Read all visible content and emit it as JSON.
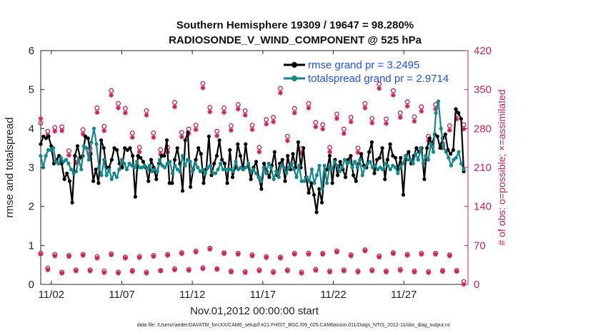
{
  "chart_data": {
    "type": "line",
    "title": "Southern Hemisphere 19309 / 19647 = 98.280%",
    "subtitle": "RADIOSONDE_V_WIND_COMPONENT @ 525 hPa",
    "xlabel": "Nov.01,2012 00:00:00 start",
    "ylabel": "rmse and totalspread",
    "y2label": "# of obs: o=possible; ×=assimilated",
    "xlim": [
      0,
      30.3
    ],
    "ylim": [
      0,
      6
    ],
    "y2lim": [
      0,
      420
    ],
    "xticks": [
      0.75,
      5.75,
      10.75,
      15.75,
      20.75,
      25.75
    ],
    "xticklabels": [
      "11/02",
      "11/07",
      "11/12",
      "11/17",
      "11/22",
      "11/27"
    ],
    "yticks": [
      0,
      1,
      2,
      3,
      4,
      5,
      6
    ],
    "yticklabels": [
      "0",
      "1",
      "2",
      "3",
      "4",
      "5",
      "6"
    ],
    "y2ticks": [
      0,
      70,
      140,
      210,
      280,
      350,
      420
    ],
    "y2ticklabels": [
      "0",
      "70",
      "140",
      "210",
      "280",
      "350",
      "420"
    ],
    "footnote": "data file: /Users/raeder/DAI/ATM_forcXX/CAM6_setup/f.e21.FHIST_BGC.f09_025.CAM6assim.011/Diags_NTrS_2012-11/obs_diag_output.nc",
    "series": [
      {
        "name": "rmse grand pr = 3.2495",
        "color": "#000000",
        "values": [
          3.6,
          3.8,
          3.75,
          3.8,
          3.55,
          3.1,
          3.2,
          3.3,
          3.1,
          2.7,
          2.85,
          2.65,
          2.1,
          3.3,
          3.55,
          3.25,
          3.3,
          3.8,
          3.75,
          3.35,
          2.65,
          2.95,
          2.6,
          3.7,
          3.5,
          3.0,
          3.0,
          3.2,
          3.5,
          3.45,
          3.1,
          3.0,
          3.5,
          3.45,
          3.5,
          3.3,
          2.25,
          3.3,
          3.25,
          3.15,
          3.0,
          2.65,
          3.2,
          3.0,
          2.7,
          3.1,
          3.3,
          3.3,
          3.7,
          2.6,
          2.6,
          3.2,
          3.5,
          3.1,
          2.4,
          3.7,
          3.9,
          2.5,
          2.95,
          3.2,
          3.5,
          3.35,
          2.6,
          2.95,
          3.8,
          2.8,
          3.1,
          3.3,
          3.7,
          3.2,
          3.1,
          2.6,
          3.45,
          2.75,
          3.0,
          3.6,
          3.3,
          2.95,
          3.6,
          3.05,
          2.7,
          3.0,
          3.15,
          2.75,
          2.45,
          3.1,
          2.9,
          2.75,
          3.05,
          3.4,
          2.8,
          3.1,
          3.2,
          2.65,
          3.3,
          2.95,
          3.35,
          3.0,
          3.65,
          3.0,
          3.5,
          2.75,
          2.35,
          2.6,
          2.3,
          1.85,
          2.45,
          2.1,
          2.85,
          2.95,
          3.3,
          2.6,
          3.2,
          2.8,
          3.15,
          2.95,
          2.75,
          3.2,
          3.3,
          2.8,
          2.65,
          3.1,
          3.35,
          3.05,
          3.0,
          3.4,
          3.65,
          2.85,
          3.2,
          3.25,
          3.5,
          2.7,
          3.2,
          3.6,
          3.3,
          3.25,
          2.95,
          3.25,
          2.3,
          3.3,
          3.4,
          3.1,
          3.3,
          3.5,
          3.4,
          3.5,
          2.7,
          3.5,
          3.75,
          3.6,
          3.85,
          3.8,
          3.5,
          3.75,
          3.85,
          3.45,
          3.35,
          3.45,
          4.5,
          4.4,
          4.25,
          2.9
        ]
      },
      {
        "name": "totalspread grand pr = 2.9714",
        "color": "#14878a",
        "values": [
          3.3,
          3.0,
          3.3,
          3.45,
          3.45,
          3.5,
          3.15,
          3.1,
          3.25,
          3.15,
          3.2,
          3.1,
          2.95,
          2.85,
          2.9,
          3.2,
          2.95,
          3.55,
          3.5,
          3.2,
          3.65,
          4.0,
          3.6,
          3.0,
          2.8,
          3.2,
          2.8,
          2.95,
          2.7,
          2.85,
          2.75,
          2.95,
          3.2,
          3.1,
          2.95,
          3.1,
          3.05,
          3.0,
          3.15,
          3.0,
          3.0,
          3.05,
          2.95,
          3.05,
          2.9,
          2.95,
          2.9,
          3.2,
          3.05,
          3.0,
          3.1,
          3.15,
          2.85,
          3.05,
          2.95,
          2.9,
          3.3,
          3.05,
          3.2,
          3.15,
          2.9,
          3.1,
          3.0,
          2.9,
          2.95,
          2.85,
          3.0,
          3.05,
          2.85,
          2.85,
          2.95,
          3.1,
          2.95,
          2.95,
          2.95,
          2.95,
          2.9,
          3.15,
          2.95,
          3.0,
          2.95,
          3.0,
          3.1,
          2.9,
          2.95,
          2.85,
          2.75,
          2.65,
          3.0,
          2.85,
          3.1,
          3.0,
          2.7,
          2.9,
          2.75,
          3.05,
          3.0,
          2.85,
          3.0,
          3.1,
          2.95,
          2.75,
          3.05,
          2.65,
          2.65,
          2.75,
          2.65,
          2.95,
          2.6,
          2.8,
          3.05,
          2.45,
          3.05,
          2.6,
          3.0,
          2.95,
          3.15,
          3.05,
          2.9,
          3.0,
          3.2,
          3.1,
          3.15,
          3.0,
          3.15,
          3.0,
          3.2,
          2.8,
          3.0,
          3.1,
          3.15,
          3.0,
          3.05,
          2.95,
          3.0,
          2.95,
          3.1,
          3.05,
          2.95,
          3.05,
          3.0,
          2.85,
          3.0,
          3.1,
          3.3,
          3.2,
          3.2,
          3.1,
          3.35,
          3.2,
          3.5,
          3.1,
          3.3,
          3.2,
          3.6,
          3.4,
          4.4,
          4.7,
          4.0,
          3.55,
          3.4,
          3.25,
          3.05,
          3.2,
          3.25,
          3.4,
          3.1,
          2.95
        ]
      }
    ],
    "obs": {
      "name": "# of obs",
      "color": "#cc1f5a",
      "x": [
        0,
        0.5,
        1,
        1.5,
        2,
        2.5,
        3,
        3.5,
        4,
        4.5,
        5,
        5.5,
        6,
        6.5,
        7,
        7.5,
        8,
        8.5,
        9,
        9.5,
        10,
        10.5,
        11,
        11.5,
        12,
        12.5,
        13,
        13.5,
        14,
        14.5,
        15,
        15.5,
        16,
        16.5,
        17,
        17.5,
        18,
        18.5,
        19,
        19.5,
        20,
        20.5,
        21,
        21.5,
        22,
        22.5,
        23,
        23.5,
        24,
        24.5,
        25,
        25.5,
        26,
        26.5,
        27,
        27.5,
        28,
        28.5,
        29,
        29.5,
        30
      ],
      "possible": [
        56,
        29,
        54,
        22,
        52,
        26,
        54,
        26,
        50,
        24,
        55,
        22,
        49,
        25,
        50,
        22,
        52,
        25,
        54,
        28,
        57,
        27,
        60,
        30,
        65,
        28,
        57,
        24,
        56,
        23,
        53,
        26,
        50,
        23,
        49,
        26,
        56,
        22,
        56,
        27,
        56,
        24,
        60,
        26,
        53,
        24,
        62,
        26,
        51,
        24,
        57,
        27,
        54,
        24,
        56,
        23,
        56,
        25,
        53,
        25,
        5
      ],
      "assimilated": [
        54,
        26,
        51,
        20,
        50,
        24,
        52,
        24,
        47,
        21,
        53,
        20,
        47,
        23,
        48,
        20,
        50,
        24,
        52,
        26,
        55,
        25,
        58,
        28,
        63,
        27,
        55,
        22,
        54,
        21,
        51,
        24,
        48,
        21,
        47,
        24,
        54,
        20,
        54,
        25,
        54,
        22,
        58,
        24,
        51,
        22,
        60,
        24,
        49,
        22,
        55,
        25,
        52,
        22,
        54,
        21,
        54,
        23,
        51,
        23,
        0
      ],
      "possible_high": [
        290,
        275,
        282,
        283,
        240,
        226,
        278,
        244,
        317,
        284,
        348,
        325,
        316,
        272,
        246,
        312,
        272,
        242,
        246,
        327,
        273,
        279,
        286,
        361,
        318,
        275,
        317,
        285,
        323,
        312,
        286,
        246,
        296,
        300,
        352,
        266,
        316,
        244,
        325,
        291,
        287,
        246,
        306,
        279,
        300,
        245,
        325,
        298,
        360,
        297,
        348,
        308,
        328,
        301,
        319,
        266,
        323,
        253,
        285,
        305,
        287
      ],
      "assimilated_high": [
        298,
        268,
        275,
        276,
        232,
        218,
        270,
        236,
        309,
        276,
        340,
        317,
        308,
        264,
        238,
        304,
        264,
        234,
        238,
        319,
        265,
        271,
        278,
        353,
        310,
        267,
        309,
        277,
        315,
        304,
        278,
        238,
        288,
        292,
        344,
        258,
        308,
        236,
        317,
        283,
        279,
        238,
        298,
        271,
        292,
        237,
        317,
        290,
        352,
        289,
        340,
        300,
        320,
        293,
        311,
        258,
        315,
        245,
        277,
        297,
        279
      ]
    }
  }
}
